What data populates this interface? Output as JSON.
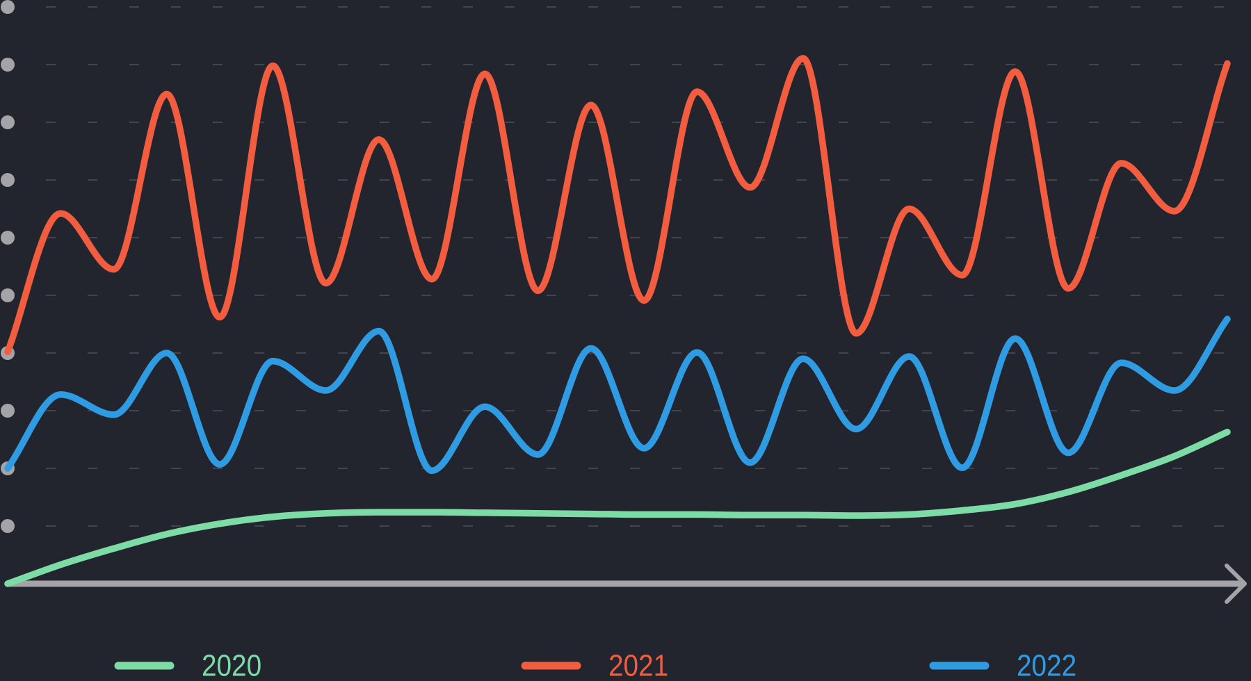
{
  "chart_data": {
    "type": "line",
    "x": [
      0,
      1,
      2,
      3,
      4,
      5,
      6,
      7,
      8,
      9,
      10,
      11,
      12,
      13,
      14,
      15,
      16,
      17,
      18,
      19,
      20,
      21,
      22,
      23
    ],
    "xlim": [
      0,
      23
    ],
    "ylim": [
      0,
      10
    ],
    "yticks": [
      1,
      2,
      3,
      4,
      5,
      6,
      7,
      8,
      9,
      10
    ],
    "grid": true,
    "legend": "bottom",
    "series": [
      {
        "name": "2020",
        "color": "#7ddba6",
        "values": [
          0,
          0.33,
          0.61,
          0.86,
          1.04,
          1.16,
          1.22,
          1.24,
          1.24,
          1.23,
          1.22,
          1.21,
          1.2,
          1.2,
          1.19,
          1.19,
          1.18,
          1.2,
          1.27,
          1.38,
          1.59,
          1.88,
          2.21,
          2.63
        ]
      },
      {
        "name": "2021",
        "color": "#f25c3f",
        "values": [
          4.02,
          6.42,
          5.45,
          8.49,
          4.62,
          8.98,
          5.21,
          7.7,
          5.28,
          8.84,
          5.08,
          8.3,
          4.91,
          8.53,
          6.87,
          9.11,
          4.34,
          6.5,
          5.35,
          8.88,
          5.12,
          7.29,
          6.46,
          9.02
        ]
      },
      {
        "name": "2022",
        "color": "#2f9be3",
        "values": [
          2.0,
          3.28,
          2.93,
          4.0,
          2.07,
          3.86,
          3.35,
          4.38,
          1.96,
          3.07,
          2.24,
          4.08,
          2.35,
          4.01,
          2.1,
          3.9,
          2.68,
          3.94,
          2.01,
          4.25,
          2.27,
          3.83,
          3.35,
          4.59
        ]
      }
    ]
  }
}
